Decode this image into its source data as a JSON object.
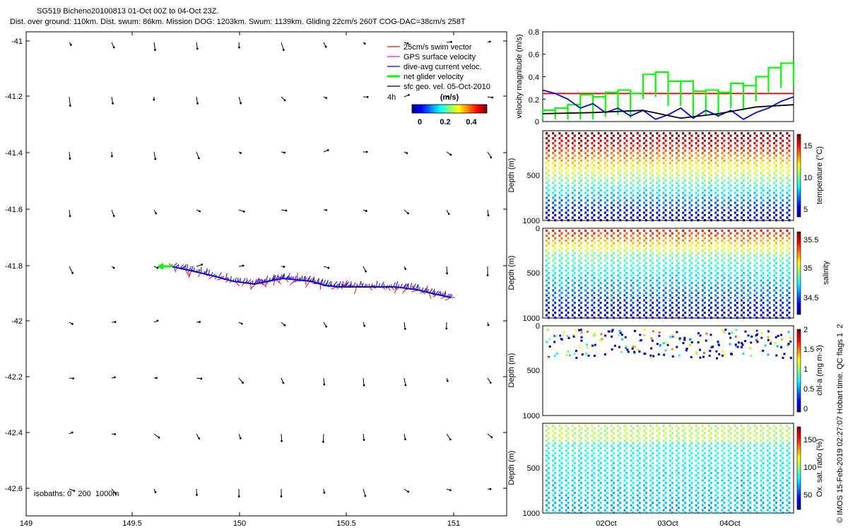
{
  "header": {
    "title": "SG519 Bicheno20100813 01-Oct 00Z to 04-Oct 23Z.",
    "subtitle": "Dist. over ground: 110km. Dist. swum: 86km. Mission DOG: 1203km. Swum: 1139km. Gliding 22cm/s 260T COG-DAC=38cm/s 258T"
  },
  "map": {
    "xticks": [
      "149",
      "149.5",
      "150",
      "150.5",
      "151"
    ],
    "yticks": [
      "-41",
      "-41.2",
      "-41.4",
      "-41.6",
      "-41.8",
      "-42",
      "-42.2",
      "-42.4",
      "-42.6"
    ],
    "isobaths_label": "isobaths: 0   200  1000m",
    "legend": [
      {
        "label": "25cm/s swim vector",
        "color": "#ff0000"
      },
      {
        "label": "GPS surface velocity",
        "color": "#ff00ff"
      },
      {
        "label": "dive-avg current veloc.",
        "color": "#0000ff"
      },
      {
        "label": "net glider velocity",
        "color": "#00ff00"
      },
      {
        "label": "sfc geo. vel. 05-Oct-2010",
        "color": "#000000"
      }
    ],
    "legend_extra": "4h",
    "colorbar_title": "(m/s)",
    "colorbar_ticks": [
      "0",
      "0.2",
      "0.4"
    ]
  },
  "chart_data": [
    {
      "type": "line",
      "title": "",
      "ylabel": "velocity magnitude (m/s)",
      "ylim": [
        0,
        0.8
      ],
      "yticks": [
        "0",
        "0.2",
        "0.4",
        "0.6",
        "0.8"
      ],
      "series": [
        {
          "name": "25cm/s swim vector",
          "color": "#ff0000",
          "x": [
            0,
            1
          ],
          "values": [
            0.25,
            0.25
          ]
        },
        {
          "name": "net glider velocity",
          "color": "#00ff00",
          "x": [
            0,
            0.05,
            0.1,
            0.15,
            0.2,
            0.25,
            0.3,
            0.35,
            0.4,
            0.45,
            0.5,
            0.55,
            0.6,
            0.65,
            0.7,
            0.75,
            0.8,
            0.85,
            0.9,
            0.95,
            1.0
          ],
          "values": [
            0.1,
            0.12,
            0.15,
            0.24,
            0.22,
            0.26,
            0.28,
            0.25,
            0.42,
            0.44,
            0.36,
            0.36,
            0.27,
            0.28,
            0.26,
            0.34,
            0.32,
            0.4,
            0.48,
            0.52,
            0.54
          ]
        },
        {
          "name": "dive-avg current veloc.",
          "color": "#0000ff",
          "x": [
            0,
            0.05,
            0.1,
            0.15,
            0.2,
            0.25,
            0.3,
            0.35,
            0.4,
            0.45,
            0.5,
            0.55,
            0.6,
            0.65,
            0.7,
            0.75,
            0.8,
            0.85,
            0.9,
            0.95,
            1.0
          ],
          "values": [
            0.28,
            0.25,
            0.2,
            0.12,
            0.16,
            0.08,
            0.12,
            0.05,
            0.1,
            0.02,
            0.06,
            0.12,
            0.03,
            0.1,
            0.05,
            0.1,
            0.02,
            0.08,
            0.12,
            0.18,
            0.22
          ]
        },
        {
          "name": "sfc geo. vel.",
          "color": "#000000",
          "x": [
            0,
            0.2,
            0.4,
            0.55,
            0.7,
            0.85,
            1.0
          ],
          "values": [
            0.07,
            0.08,
            0.1,
            0.03,
            0.07,
            0.13,
            0.15
          ]
        }
      ]
    },
    {
      "type": "scatter",
      "ylabel": "Depth (m)",
      "ylim": [
        1000,
        0
      ],
      "yticks": [
        "0",
        "500",
        "1000"
      ],
      "colorbar_label": "temperature (°C)",
      "colorbar_ticks": [
        "5",
        "10",
        "15"
      ]
    },
    {
      "type": "scatter",
      "ylabel": "Depth (m)",
      "ylim": [
        1000,
        0
      ],
      "yticks": [
        "0",
        "500",
        "1000"
      ],
      "colorbar_label": "salinity",
      "colorbar_ticks": [
        "34.5",
        "35",
        "35.5"
      ]
    },
    {
      "type": "scatter",
      "ylabel": "Depth (m)",
      "ylim": [
        1000,
        0
      ],
      "yticks": [
        "0",
        "500",
        "1000"
      ],
      "colorbar_label": "chl-a (mg m-3)",
      "colorbar_ticks": [
        "0",
        "0.5",
        "1",
        "1.5",
        "2"
      ]
    },
    {
      "type": "scatter",
      "ylabel": "Depth (m)",
      "ylim": [
        1000,
        0
      ],
      "yticks": [
        "0",
        "500",
        "1000"
      ],
      "colorbar_label": "Ox. sat. ratio (%)",
      "colorbar_ticks": [
        "50",
        "100",
        "150"
      ],
      "xticks": [
        "02Oct",
        "03Oct",
        "04Oct"
      ]
    }
  ],
  "footer": {
    "credit": "© IMOS 15-Feb-2019 02:27:07 Hobart time. QC flags 1  2"
  }
}
